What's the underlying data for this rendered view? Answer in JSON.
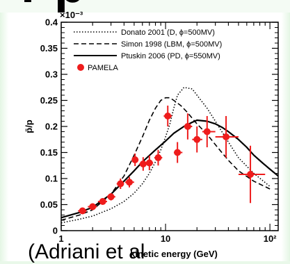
{
  "fragments": {
    "title_cut": "r p",
    "caption_cut": "(Adriani et al"
  },
  "chart_data": {
    "type": "scatter",
    "xlabel": "kinetic energy (GeV)",
    "ylabel": "p̄/p",
    "x_scale": "log",
    "xlim": [
      1,
      120
    ],
    "ylim": [
      0,
      0.0004
    ],
    "y_multiplier_label": "×10⁻³",
    "y_ticks": [
      0,
      5e-05,
      0.0001,
      0.00015,
      0.0002,
      0.00025,
      0.0003,
      0.00035,
      0.0004
    ],
    "y_tick_labels": [
      "0",
      "0.05",
      "0.1",
      "0.15",
      "0.2",
      "0.25",
      "0.3",
      "0.35",
      "0.4"
    ],
    "x_ticks": [
      1,
      10,
      100
    ],
    "x_tick_labels": [
      "1",
      "10",
      "10²"
    ],
    "legend_position": "top-right",
    "colors": {
      "pamela": "#ee1c1c",
      "model": "#000000"
    },
    "series": [
      {
        "name": "Donato 2001 (D, ϕ=500MV)",
        "style": "dotted",
        "x": [
          1,
          1.5,
          2,
          3,
          4,
          5,
          6,
          7,
          8,
          9,
          10,
          11,
          12,
          13,
          15,
          18,
          20,
          25,
          30,
          40,
          50,
          70,
          100
        ],
        "y": [
          1.5e-05,
          2.2e-05,
          2.8e-05,
          4.2e-05,
          5.6e-05,
          7.2e-05,
          9e-05,
          0.00011,
          0.000132,
          0.000155,
          0.00018,
          0.000205,
          0.000235,
          0.00026,
          0.000275,
          0.000272,
          0.00026,
          0.000235,
          0.00021,
          0.00017,
          0.00014,
          0.00011,
          8.5e-05
        ]
      },
      {
        "name": "Simon 1998 (LBM, ϕ=500MV)",
        "style": "dashed",
        "x": [
          1,
          1.5,
          2,
          3,
          4,
          5,
          6,
          7,
          8,
          9,
          10,
          11,
          12,
          14,
          16,
          20,
          25,
          30,
          40,
          50,
          70,
          100
        ],
        "y": [
          2e-05,
          3e-05,
          4e-05,
          7e-05,
          0.000105,
          0.000145,
          0.00018,
          0.000212,
          0.000235,
          0.00025,
          0.000255,
          0.000255,
          0.00025,
          0.00024,
          0.000228,
          0.000205,
          0.000185,
          0.000165,
          0.000135,
          0.000115,
          9.5e-05,
          8e-05
        ]
      },
      {
        "name": "Ptuskin 2006 (PD, ϕ=550MV)",
        "style": "solid",
        "x": [
          1,
          1.5,
          2,
          3,
          4,
          5,
          6,
          8,
          10,
          12,
          15,
          18,
          20,
          25,
          30,
          35,
          40,
          50,
          60,
          70,
          85,
          100,
          120
        ],
        "y": [
          2.5e-05,
          3.5e-05,
          4.5e-05,
          7e-05,
          9.5e-05,
          0.000115,
          0.000132,
          0.000155,
          0.000172,
          0.000187,
          0.0002,
          0.000208,
          0.000212,
          0.00021,
          0.000205,
          0.000198,
          0.00019,
          0.000175,
          0.00016,
          0.000145,
          0.00013,
          0.000118,
          0.000105
        ]
      },
      {
        "name": "PAMELA",
        "style": "points",
        "points": [
          {
            "x": 1.6,
            "y": 3.8e-05,
            "yerr": 5e-06,
            "xlo": 1.45,
            "xhi": 1.75
          },
          {
            "x": 2.0,
            "y": 4.6e-05,
            "yerr": 5e-06,
            "xlo": 1.8,
            "xhi": 2.2
          },
          {
            "x": 2.5,
            "y": 5.6e-05,
            "yerr": 6e-06,
            "xlo": 2.25,
            "xhi": 2.75
          },
          {
            "x": 3.0,
            "y": 6.5e-05,
            "yerr": 7e-06,
            "xlo": 2.75,
            "xhi": 3.3
          },
          {
            "x": 3.7,
            "y": 9e-05,
            "yerr": 1e-05,
            "xlo": 3.4,
            "xhi": 4.0
          },
          {
            "x": 4.5,
            "y": 9.3e-05,
            "yerr": 1e-05,
            "xlo": 4.1,
            "xhi": 5.0
          },
          {
            "x": 5.1,
            "y": 0.000136,
            "yerr": 1.2e-05,
            "xlo": 4.8,
            "xhi": 5.5
          },
          {
            "x": 6.1,
            "y": 0.000128,
            "yerr": 1.3e-05,
            "xlo": 5.6,
            "xhi": 6.6
          },
          {
            "x": 7.0,
            "y": 0.00013,
            "yerr": 1.4e-05,
            "xlo": 6.5,
            "xhi": 7.6
          },
          {
            "x": 8.5,
            "y": 0.00014,
            "yerr": 1.5e-05,
            "xlo": 7.8,
            "xhi": 9.3
          },
          {
            "x": 10.5,
            "y": 0.00022,
            "yerr": 2e-05,
            "xlo": 9.6,
            "xhi": 11.5
          },
          {
            "x": 13.0,
            "y": 0.00015,
            "yerr": 2e-05,
            "xlo": 12.0,
            "xhi": 14.5
          },
          {
            "x": 16.3,
            "y": 0.0002,
            "yerr": 2.5e-05,
            "xlo": 15.0,
            "xhi": 18.0
          },
          {
            "x": 20.0,
            "y": 0.000175,
            "yerr": 2.5e-05,
            "xlo": 18.0,
            "xhi": 22.5
          },
          {
            "x": 25.0,
            "y": 0.00019,
            "yerr": 3e-05,
            "xlo": 22.5,
            "xhi": 30.0
          },
          {
            "x": 38.0,
            "y": 0.00018,
            "yerr": 4e-05,
            "xlo": 30.0,
            "xhi": 50.0
          },
          {
            "x": 65.0,
            "y": 0.000108,
            "yerr": 5.5e-05,
            "xlo": 50.0,
            "xhi": 90.0
          }
        ]
      }
    ]
  }
}
